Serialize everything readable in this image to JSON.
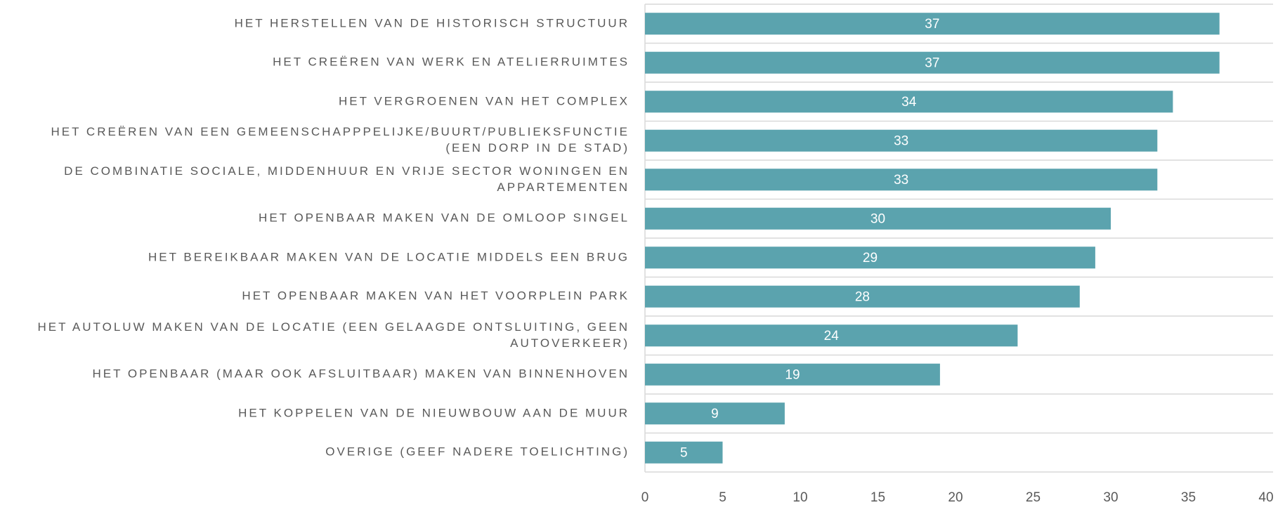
{
  "chart_data": {
    "type": "barh",
    "categories": [
      "HET HERSTELLEN VAN DE HISTORISCH STRUCTUUR",
      "HET CREËREN VAN WERK EN ATELIERRUIMTES",
      "HET VERGROENEN VAN HET COMPLEX ",
      "HET CREËREN VAN EEN GEMEENSCHAPPPELIJKE/BUURT/PUBLIEKSFUNCTIE (EEN DORP IN DE STAD)",
      "DE COMBINATIE SOCIALE, MIDDENHUUR EN VRIJE SECTOR WONINGEN EN APPARTEMENTEN",
      "HET OPENBAAR MAKEN VAN DE OMLOOP SINGEL",
      "HET BEREIKBAAR MAKEN VAN DE LOCATIE MIDDELS EEN BRUG",
      "HET OPENBAAR MAKEN VAN HET VOORPLEIN PARK",
      "HET AUTOLUW MAKEN VAN DE LOCATIE (EEN GELAAGDE ONTSLUITING, GEEN AUTOVERKEER)",
      "HET OPENBAAR (MAAR OOK AFSLUITBAAR) MAKEN VAN BINNENHOVEN",
      "HET KOPPELEN VAN DE NIEUWBOUW AAN DE MUUR",
      "OVERIGE (GEEF NADERE TOELICHTING)"
    ],
    "values": [
      37,
      37,
      34,
      33,
      33,
      30,
      29,
      28,
      24,
      19,
      9,
      5
    ],
    "color": "#5ba3ae",
    "xlim": [
      0,
      40
    ],
    "xticks": [
      0,
      5,
      10,
      15,
      20,
      25,
      30,
      35,
      40
    ]
  }
}
